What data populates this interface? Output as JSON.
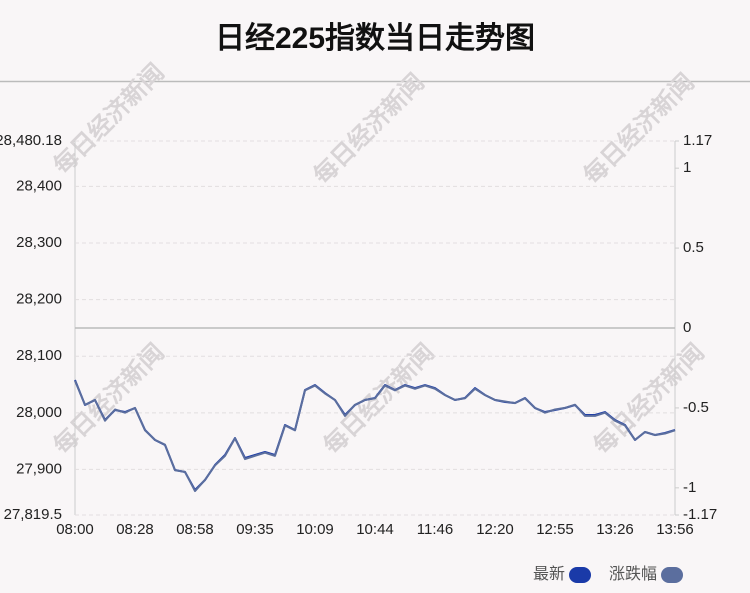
{
  "chart_data": {
    "type": "line",
    "title": "日经225指数当日走势图",
    "watermark": "每日经济新闻",
    "categories": [
      "08:00",
      null,
      null,
      null,
      null,
      null,
      "08:28",
      null,
      null,
      null,
      null,
      null,
      "08:58",
      null,
      null,
      null,
      null,
      null,
      "09:35",
      null,
      null,
      null,
      null,
      null,
      "10:09",
      null,
      null,
      null,
      null,
      null,
      "10:44",
      null,
      null,
      null,
      null,
      null,
      "11:46",
      null,
      null,
      null,
      null,
      null,
      "12:20",
      null,
      null,
      null,
      null,
      null,
      "12:55",
      null,
      null,
      null,
      null,
      null,
      "13:26",
      null,
      null,
      null,
      null,
      null,
      "13:56"
    ],
    "series": [
      {
        "name": "最新",
        "color": "#1a3aa8",
        "values": [
          28058.0,
          28013.8,
          28022.6,
          27987.3,
          28005.0,
          28001.4,
          28008.5,
          27969.7,
          27952.0,
          27943.2,
          27899.0,
          27895.5,
          27863.7,
          27881.3,
          27907.8,
          27925.5,
          27955.5,
          27920.2,
          27925.5,
          27930.8,
          27925.5,
          27978.5,
          27969.7,
          28040.3,
          28049.1,
          28035.0,
          28022.6,
          27996.2,
          28013.8,
          28022.6,
          28026.2,
          28049.1,
          28040.3,
          28049.1,
          28043.8,
          28049.1,
          28043.8,
          28031.5,
          28022.6,
          28026.2,
          28043.8,
          28031.5,
          28022.6,
          28019.1,
          28017.3,
          28026.2,
          28008.5,
          28001.4,
          28005.0,
          28008.5,
          28013.8,
          27996.2,
          27996.2,
          28001.4,
          27987.3,
          27978.5,
          27952.0,
          27966.1,
          27960.8,
          27964.4,
          27969.7
        ]
      },
      {
        "name": "涨跌幅",
        "color": "#5b6e9e",
        "axis": "y2",
        "values": [
          -0.33,
          -0.48,
          -0.45,
          -0.58,
          -0.51,
          -0.53,
          -0.5,
          -0.64,
          -0.7,
          -0.73,
          -0.89,
          -0.9,
          -1.02,
          -0.95,
          -0.86,
          -0.8,
          -0.69,
          -0.82,
          -0.8,
          -0.78,
          -0.8,
          -0.61,
          -0.64,
          -0.39,
          -0.36,
          -0.41,
          -0.45,
          -0.55,
          -0.48,
          -0.45,
          -0.44,
          -0.36,
          -0.39,
          -0.36,
          -0.38,
          -0.36,
          -0.38,
          -0.42,
          -0.45,
          -0.44,
          -0.38,
          -0.42,
          -0.45,
          -0.46,
          -0.47,
          -0.44,
          -0.5,
          -0.53,
          -0.51,
          -0.5,
          -0.48,
          -0.55,
          -0.55,
          -0.53,
          -0.58,
          -0.61,
          -0.7,
          -0.65,
          -0.67,
          -0.66,
          -0.64
        ]
      }
    ],
    "ylim": [
      27819.5,
      28480.18
    ],
    "yticks": [
      {
        "value": 27819.5,
        "label": "27,819.5"
      },
      {
        "value": 27900,
        "label": "27,900"
      },
      {
        "value": 28000,
        "label": "28,000"
      },
      {
        "value": 28100,
        "label": "28,100"
      },
      {
        "value": 28200,
        "label": "28,200"
      },
      {
        "value": 28300,
        "label": "28,300"
      },
      {
        "value": 28400,
        "label": "28,400"
      },
      {
        "value": 28480.18,
        "label": "28,480.18"
      }
    ],
    "y2lim": [
      -1.17,
      1.17
    ],
    "y2ticks": [
      -1.17,
      -1,
      -0.5,
      0,
      0.5,
      1,
      1.17
    ],
    "grid": true
  }
}
